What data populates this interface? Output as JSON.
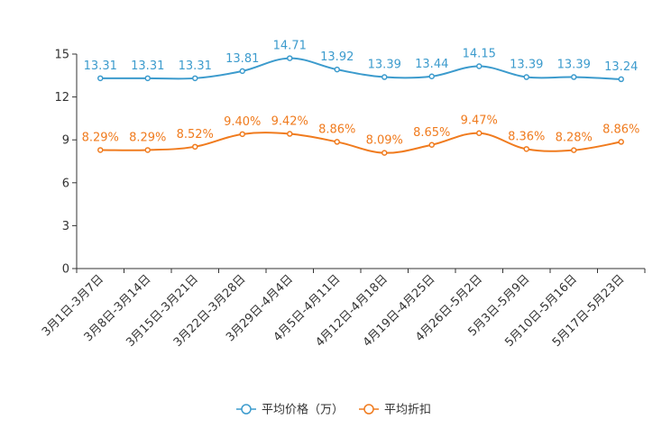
{
  "chart_data": {
    "type": "line",
    "title": "",
    "xlabel": "",
    "ylabel": "",
    "ylim": [
      0,
      15
    ],
    "yticks": [
      0,
      3,
      6,
      9,
      12,
      15
    ],
    "grid": false,
    "legend": "bottom-center",
    "categories": [
      "3月1日-3月7日",
      "3月8日-3月14日",
      "3月15日-3月21日",
      "3月22日-3月28日",
      "3月29日-4月4日",
      "4月5日-4月11日",
      "4月12日-4月18日",
      "4月19日-4月25日",
      "4月26日-5月2日",
      "5月3日-5月9日",
      "5月10日-5月16日",
      "5月17日-5月23日"
    ],
    "series": [
      {
        "name": "平均价格（万）",
        "color": "#3c9bcd",
        "values": [
          13.31,
          13.31,
          13.31,
          13.81,
          14.71,
          13.92,
          13.39,
          13.44,
          14.15,
          13.39,
          13.39,
          13.24
        ],
        "labels": [
          "13.31",
          "13.31",
          "13.31",
          "13.81",
          "14.71",
          "13.92",
          "13.39",
          "13.44",
          "14.15",
          "13.39",
          "13.39",
          "13.24"
        ]
      },
      {
        "name": "平均折扣",
        "color": "#f07b1e",
        "values": [
          8.29,
          8.29,
          8.52,
          9.4,
          9.42,
          8.86,
          8.09,
          8.65,
          9.47,
          8.36,
          8.28,
          8.86
        ],
        "labels": [
          "8.29%",
          "8.29%",
          "8.52%",
          "9.40%",
          "9.42%",
          "8.86%",
          "8.09%",
          "8.65%",
          "9.47%",
          "8.36%",
          "8.28%",
          "8.86%"
        ]
      }
    ]
  }
}
